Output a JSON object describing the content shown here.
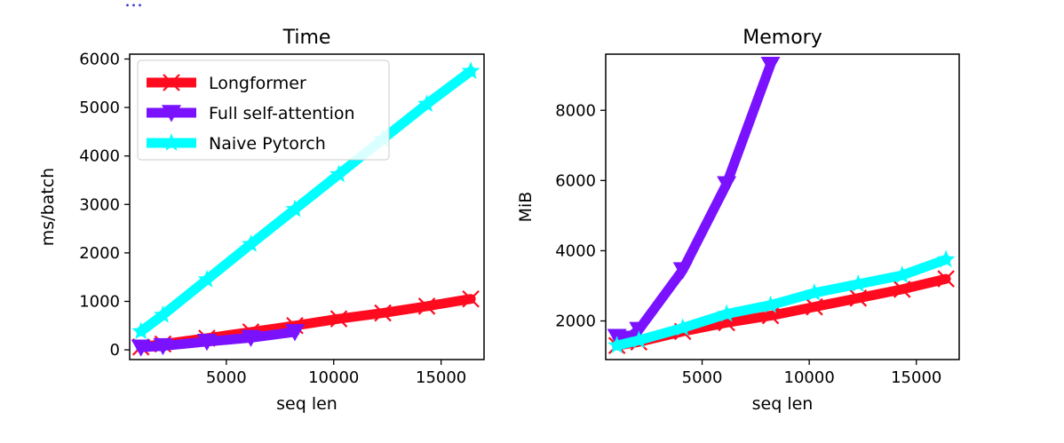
{
  "fragment_text": "...",
  "chart_data": [
    {
      "type": "line",
      "title": "Time",
      "xlabel": "seq len",
      "ylabel": "ms/batch",
      "xlim": [
        500,
        17000
      ],
      "ylim": [
        -200,
        6100
      ],
      "xticks": [
        5000,
        10000,
        15000
      ],
      "yticks": [
        0,
        1000,
        2000,
        3000,
        4000,
        5000,
        6000
      ],
      "legend": "top-left",
      "grid": false,
      "series": [
        {
          "name": "Longformer",
          "color": "#ff0a1e",
          "marker": "x",
          "x": [
            1024,
            2048,
            4096,
            6144,
            8192,
            10240,
            12288,
            14336,
            16384
          ],
          "y": [
            60,
            120,
            240,
            370,
            500,
            640,
            760,
            900,
            1050
          ]
        },
        {
          "name": "Full self-attention",
          "color": "#7a12ff",
          "marker": "triangle-down",
          "x": [
            1024,
            2048,
            4096,
            6144,
            8192
          ],
          "y": [
            50,
            80,
            170,
            250,
            370
          ]
        },
        {
          "name": "Naive Pytorch",
          "color": "#00ffff",
          "marker": "star",
          "x": [
            1024,
            2048,
            4096,
            6144,
            8192,
            10240,
            12288,
            14336,
            16384
          ],
          "y": [
            380,
            720,
            1450,
            2180,
            2900,
            3620,
            4350,
            5070,
            5750
          ]
        }
      ]
    },
    {
      "type": "line",
      "title": "Memory",
      "xlabel": "seq len",
      "ylabel": "MiB",
      "xlim": [
        500,
        17000
      ],
      "ylim": [
        900,
        9600
      ],
      "xticks": [
        5000,
        10000,
        15000
      ],
      "yticks": [
        2000,
        4000,
        6000,
        8000
      ],
      "grid": false,
      "series": [
        {
          "name": "Longformer",
          "color": "#ff0a1e",
          "marker": "x",
          "x": [
            1024,
            2048,
            4096,
            6144,
            8192,
            10240,
            12288,
            14336,
            16384
          ],
          "y": [
            1300,
            1400,
            1700,
            1950,
            2150,
            2400,
            2650,
            2900,
            3200
          ]
        },
        {
          "name": "Full self-attention",
          "color": "#7a12ff",
          "marker": "triangle-down",
          "x": [
            1024,
            1536,
            2048,
            4096,
            6144,
            8192
          ],
          "y": [
            1550,
            1500,
            1750,
            3450,
            5900,
            9300
          ]
        },
        {
          "name": "Naive Pytorch",
          "color": "#00ffff",
          "marker": "star",
          "x": [
            1024,
            2048,
            4096,
            6144,
            8192,
            10240,
            12288,
            14336,
            16384
          ],
          "y": [
            1300,
            1450,
            1800,
            2200,
            2450,
            2800,
            3050,
            3300,
            3750
          ]
        }
      ]
    }
  ]
}
